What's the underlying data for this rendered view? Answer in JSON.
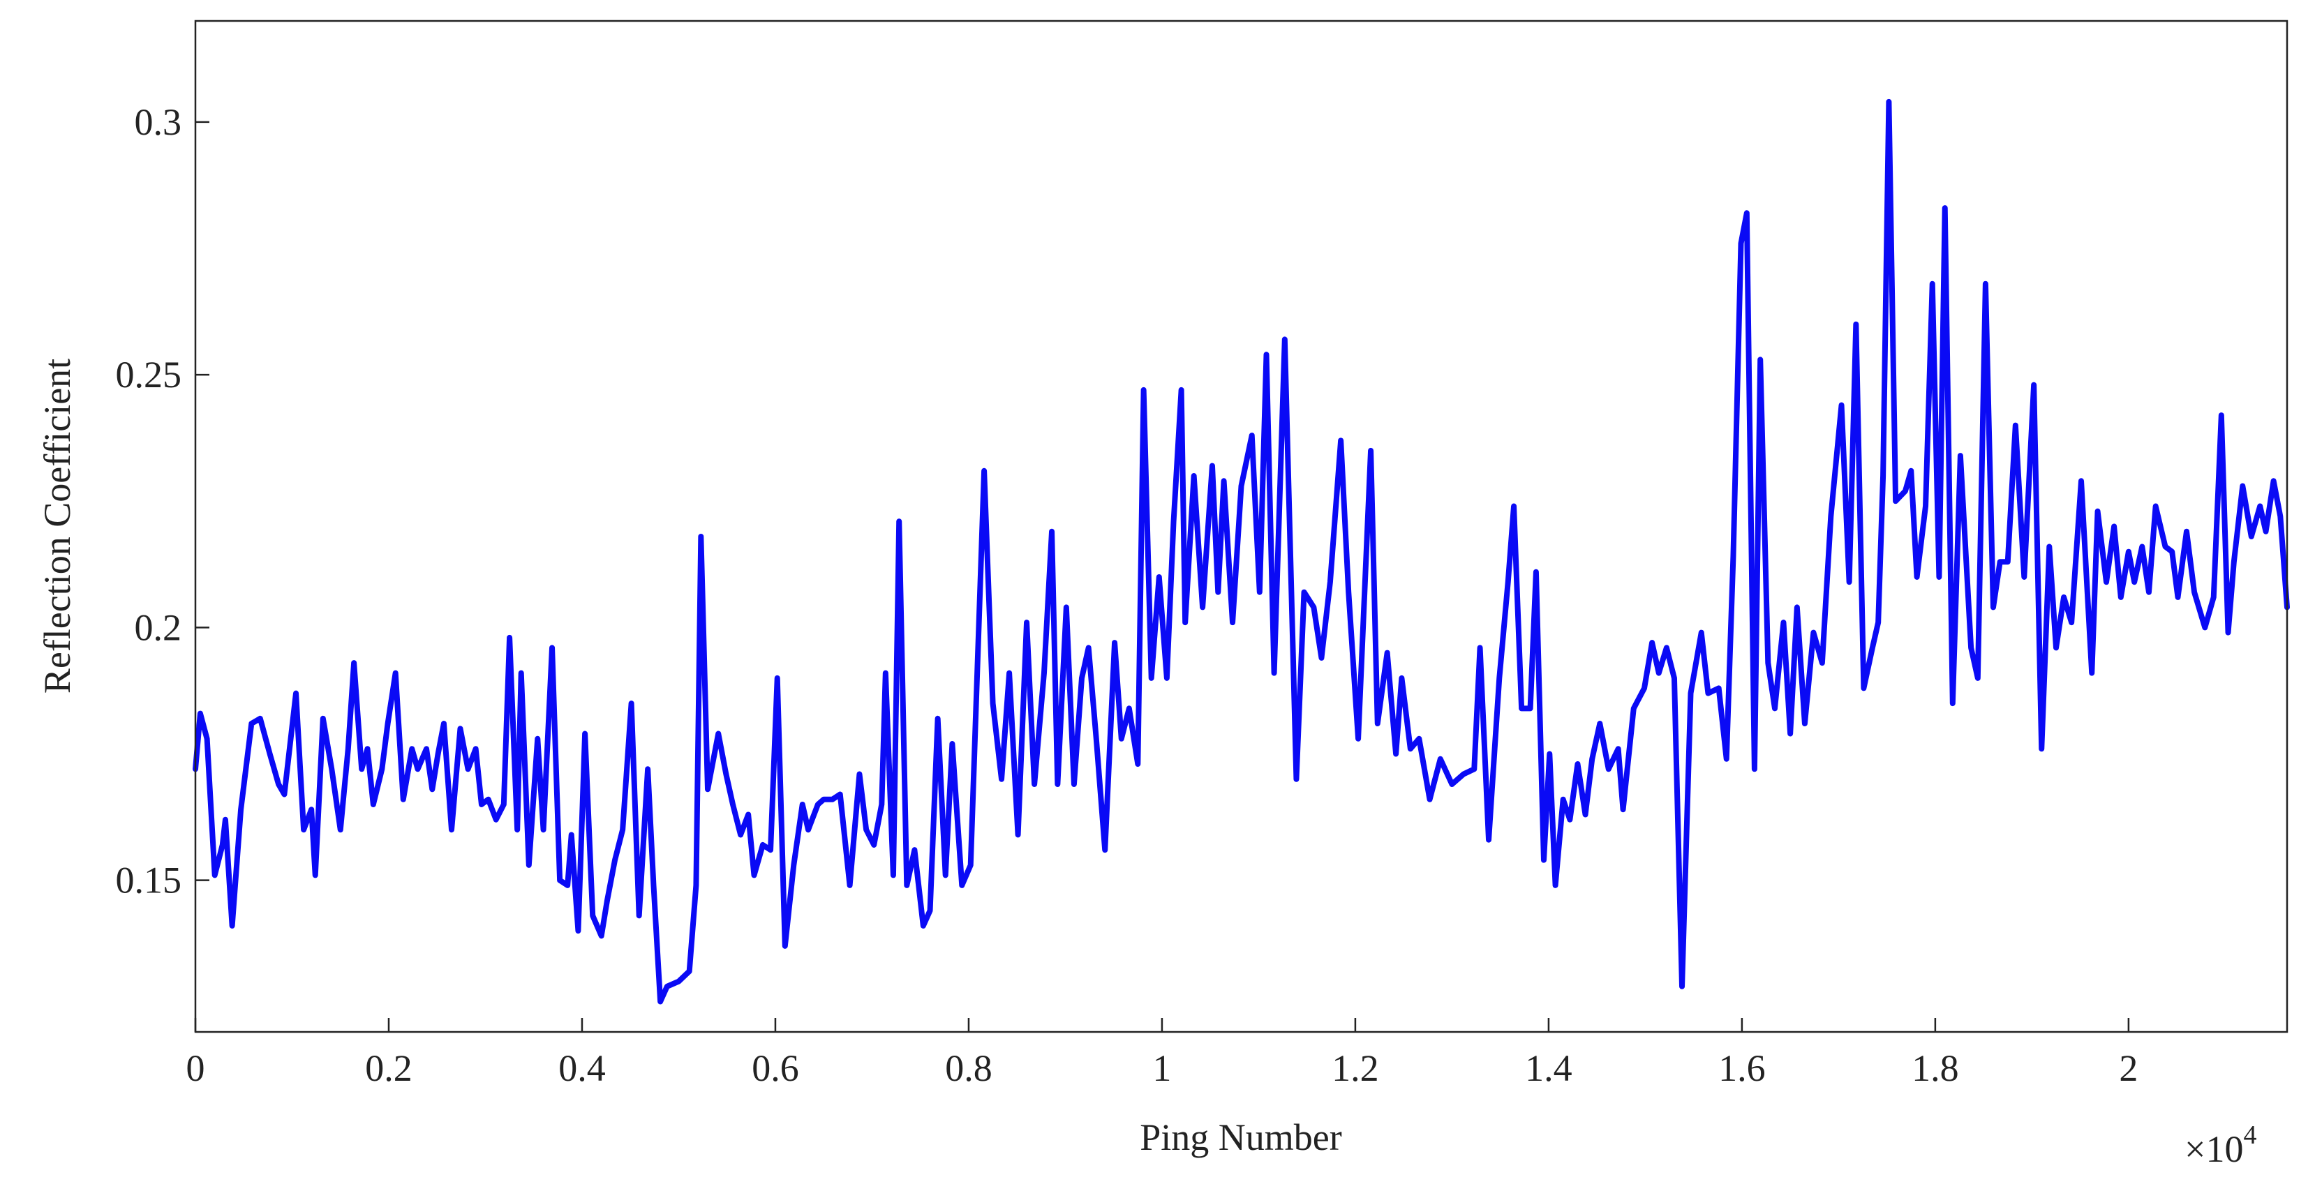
{
  "chart_data": {
    "type": "line",
    "xlabel": "Ping Number",
    "ylabel": "Reflection Coefficient",
    "x_multiplier": {
      "base": "×10",
      "exponent": "4"
    },
    "color": "#0a0af5",
    "xlim": [
      0,
      2.164
    ],
    "ylim": [
      0.12,
      0.32
    ],
    "xticks": [
      0,
      0.2,
      0.4,
      0.6,
      0.8,
      1,
      1.2,
      1.4,
      1.6,
      1.8,
      2
    ],
    "yticks": [
      0.15,
      0.2,
      0.25,
      0.3
    ],
    "grid": false,
    "x": [
      0,
      0.005,
      0.012,
      0.02,
      0.028,
      0.031,
      0.038,
      0.047,
      0.058,
      0.067,
      0.077,
      0.086,
      0.092,
      0.104,
      0.112,
      0.12,
      0.124,
      0.132,
      0.141,
      0.15,
      0.158,
      0.164,
      0.172,
      0.178,
      0.184,
      0.193,
      0.199,
      0.207,
      0.215,
      0.224,
      0.23,
      0.239,
      0.245,
      0.251,
      0.257,
      0.265,
      0.274,
      0.282,
      0.29,
      0.296,
      0.303,
      0.311,
      0.319,
      0.325,
      0.333,
      0.337,
      0.345,
      0.354,
      0.36,
      0.369,
      0.377,
      0.385,
      0.389,
      0.396,
      0.403,
      0.411,
      0.42,
      0.426,
      0.434,
      0.442,
      0.451,
      0.459,
      0.468,
      0.474,
      0.481,
      0.488,
      0.5,
      0.511,
      0.518,
      0.523,
      0.53,
      0.541,
      0.549,
      0.556,
      0.564,
      0.572,
      0.578,
      0.587,
      0.595,
      0.602,
      0.61,
      0.619,
      0.628,
      0.634,
      0.644,
      0.65,
      0.659,
      0.667,
      0.677,
      0.687,
      0.694,
      0.702,
      0.71,
      0.714,
      0.722,
      0.728,
      0.736,
      0.744,
      0.753,
      0.76,
      0.768,
      0.776,
      0.783,
      0.793,
      0.802,
      0.816,
      0.825,
      0.834,
      0.842,
      0.851,
      0.86,
      0.868,
      0.878,
      0.886,
      0.892,
      0.901,
      0.909,
      0.917,
      0.924,
      0.932,
      0.941,
      0.951,
      0.958,
      0.966,
      0.975,
      0.981,
      0.989,
      0.997,
      1.005,
      1.012,
      1.02,
      1.024,
      1.033,
      1.042,
      1.052,
      1.058,
      1.064,
      1.073,
      1.082,
      1.093,
      1.101,
      1.108,
      1.116,
      1.127,
      1.139,
      1.147,
      1.157,
      1.165,
      1.174,
      1.185,
      1.193,
      1.203,
      1.216,
      1.223,
      1.233,
      1.242,
      1.248,
      1.257,
      1.266,
      1.277,
      1.288,
      1.3,
      1.312,
      1.323,
      1.329,
      1.338,
      1.349,
      1.358,
      1.364,
      1.372,
      1.381,
      1.387,
      1.395,
      1.401,
      1.407,
      1.415,
      1.422,
      1.43,
      1.438,
      1.445,
      1.453,
      1.462,
      1.472,
      1.477,
      1.488,
      1.499,
      1.507,
      1.514,
      1.522,
      1.53,
      1.538,
      1.547,
      1.558,
      1.565,
      1.576,
      1.584,
      1.591,
      1.599,
      1.605,
      1.613,
      1.619,
      1.627,
      1.634,
      1.643,
      1.65,
      1.657,
      1.665,
      1.674,
      1.683,
      1.692,
      1.703,
      1.711,
      1.718,
      1.726,
      1.735,
      1.741,
      1.746,
      1.752,
      1.759,
      1.769,
      1.775,
      1.781,
      1.79,
      1.797,
      1.804,
      1.81,
      1.818,
      1.826,
      1.837,
      1.844,
      1.852,
      1.86,
      1.867,
      1.875,
      1.883,
      1.892,
      1.902,
      1.91,
      1.918,
      1.925,
      1.933,
      1.941,
      1.951,
      1.962,
      1.968,
      1.977,
      1.985,
      1.992,
      2.0,
      2.006,
      2.014,
      2.021,
      2.028,
      2.038,
      2.045,
      2.051,
      2.06,
      2.068,
      2.079,
      2.088,
      2.096,
      2.103,
      2.109,
      2.118,
      2.127,
      2.136,
      2.142,
      2.15,
      2.157,
      2.164
    ],
    "values": [
      0.172,
      0.183,
      0.178,
      0.151,
      0.157,
      0.162,
      0.141,
      0.164,
      0.181,
      0.182,
      0.175,
      0.169,
      0.167,
      0.187,
      0.16,
      0.164,
      0.151,
      0.182,
      0.172,
      0.16,
      0.176,
      0.193,
      0.172,
      0.176,
      0.165,
      0.172,
      0.181,
      0.191,
      0.166,
      0.176,
      0.172,
      0.176,
      0.168,
      0.175,
      0.181,
      0.16,
      0.18,
      0.172,
      0.176,
      0.165,
      0.166,
      0.162,
      0.165,
      0.198,
      0.16,
      0.191,
      0.153,
      0.178,
      0.16,
      0.196,
      0.15,
      0.149,
      0.159,
      0.14,
      0.179,
      0.143,
      0.139,
      0.146,
      0.154,
      0.16,
      0.185,
      0.143,
      0.172,
      0.149,
      0.126,
      0.129,
      0.13,
      0.132,
      0.149,
      0.218,
      0.168,
      0.179,
      0.171,
      0.165,
      0.159,
      0.163,
      0.151,
      0.157,
      0.156,
      0.19,
      0.137,
      0.153,
      0.165,
      0.16,
      0.165,
      0.166,
      0.166,
      0.167,
      0.149,
      0.171,
      0.16,
      0.157,
      0.165,
      0.191,
      0.151,
      0.221,
      0.149,
      0.156,
      0.141,
      0.144,
      0.182,
      0.151,
      0.177,
      0.149,
      0.153,
      0.231,
      0.185,
      0.17,
      0.191,
      0.159,
      0.201,
      0.169,
      0.191,
      0.219,
      0.169,
      0.204,
      0.169,
      0.19,
      0.196,
      0.178,
      0.156,
      0.197,
      0.178,
      0.184,
      0.173,
      0.247,
      0.19,
      0.21,
      0.19,
      0.221,
      0.247,
      0.201,
      0.23,
      0.204,
      0.232,
      0.207,
      0.229,
      0.201,
      0.228,
      0.238,
      0.207,
      0.254,
      0.191,
      0.257,
      0.17,
      0.207,
      0.204,
      0.194,
      0.209,
      0.237,
      0.207,
      0.178,
      0.235,
      0.181,
      0.195,
      0.175,
      0.19,
      0.176,
      0.178,
      0.166,
      0.174,
      0.169,
      0.171,
      0.172,
      0.196,
      0.158,
      0.19,
      0.209,
      0.224,
      0.184,
      0.184,
      0.211,
      0.154,
      0.175,
      0.149,
      0.166,
      0.162,
      0.173,
      0.163,
      0.174,
      0.181,
      0.172,
      0.176,
      0.164,
      0.184,
      0.188,
      0.197,
      0.191,
      0.196,
      0.19,
      0.129,
      0.187,
      0.199,
      0.187,
      0.188,
      0.174,
      0.214,
      0.276,
      0.282,
      0.172,
      0.253,
      0.193,
      0.184,
      0.201,
      0.179,
      0.204,
      0.181,
      0.199,
      0.193,
      0.222,
      0.244,
      0.209,
      0.26,
      0.188,
      0.196,
      0.201,
      0.23,
      0.304,
      0.225,
      0.227,
      0.231,
      0.21,
      0.224,
      0.268,
      0.21,
      0.283,
      0.185,
      0.234,
      0.196,
      0.19,
      0.268,
      0.204,
      0.213,
      0.213,
      0.24,
      0.21,
      0.248,
      0.176,
      0.216,
      0.196,
      0.206,
      0.201,
      0.229,
      0.191,
      0.223,
      0.209,
      0.22,
      0.206,
      0.215,
      0.209,
      0.216,
      0.207,
      0.224,
      0.216,
      0.215,
      0.206,
      0.219,
      0.207,
      0.2,
      0.206,
      0.242,
      0.199,
      0.213,
      0.228,
      0.218,
      0.224,
      0.219,
      0.229,
      0.222,
      0.204
    ]
  }
}
